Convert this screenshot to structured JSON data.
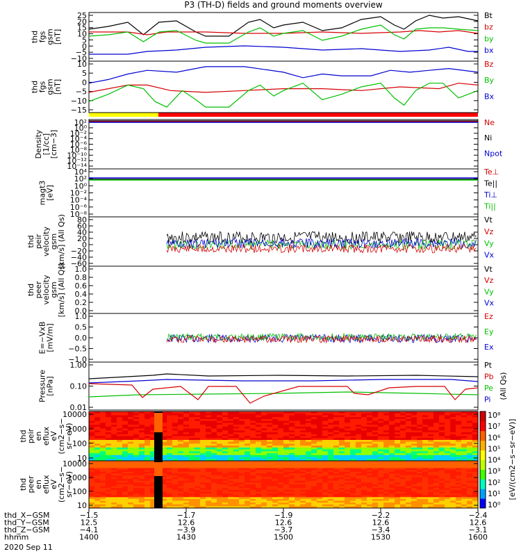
{
  "title": "P3 (TH-D) fields and ground moments overview",
  "chart_data": {
    "type": "line",
    "panels": [
      {
        "ylabel": [
          "thd",
          "fgs",
          "gsm",
          "[nT]"
        ],
        "yticks": [
          "25",
          "20",
          "15",
          "10",
          "5",
          "0",
          "−5",
          "−10"
        ],
        "ylim": [
          -10,
          25
        ],
        "legend": [
          {
            "name": "Bt",
            "color": "#000000"
          },
          {
            "name": "bz",
            "color": "#d40000"
          },
          {
            "name": "by",
            "color": "#00c000"
          },
          {
            "name": "bx",
            "color": "#0000d0"
          }
        ],
        "series": [
          {
            "name": "Bt",
            "color": "#000000",
            "points": [
              [
                0,
                13
              ],
              [
                0.1,
                15
              ],
              [
                0.2,
                18
              ],
              [
                0.28,
                9
              ],
              [
                0.36,
                18
              ],
              [
                0.45,
                19
              ],
              [
                0.55,
                11
              ],
              [
                0.6,
                8
              ],
              [
                0.72,
                8
              ],
              [
                0.82,
                18
              ],
              [
                0.88,
                20
              ],
              [
                0.95,
                14
              ],
              [
                1.0,
                16
              ],
              [
                1.1,
                18
              ],
              [
                1.2,
                12
              ],
              [
                1.3,
                14
              ],
              [
                1.4,
                20
              ],
              [
                1.5,
                22
              ],
              [
                1.57,
                16
              ],
              [
                1.62,
                13
              ],
              [
                1.68,
                19
              ],
              [
                1.75,
                23
              ],
              [
                1.82,
                21
              ],
              [
                1.9,
                22
              ],
              [
                2.0,
                19
              ]
            ]
          },
          {
            "name": "bz",
            "color": "#d40000",
            "points": [
              [
                0,
                11
              ],
              [
                0.2,
                11
              ],
              [
                0.3,
                9
              ],
              [
                0.4,
                11
              ],
              [
                0.6,
                11
              ],
              [
                0.8,
                10
              ],
              [
                1.0,
                10
              ],
              [
                1.2,
                11
              ],
              [
                1.4,
                10
              ],
              [
                1.6,
                11
              ],
              [
                1.7,
                12
              ],
              [
                1.8,
                11
              ],
              [
                1.9,
                12
              ],
              [
                2.0,
                10
              ]
            ]
          },
          {
            "name": "by",
            "color": "#00c000",
            "points": [
              [
                0,
                8
              ],
              [
                0.1,
                9
              ],
              [
                0.2,
                11
              ],
              [
                0.28,
                4
              ],
              [
                0.36,
                11
              ],
              [
                0.45,
                12
              ],
              [
                0.55,
                5
              ],
              [
                0.6,
                3
              ],
              [
                0.72,
                3
              ],
              [
                0.82,
                11
              ],
              [
                0.88,
                14
              ],
              [
                0.95,
                8
              ],
              [
                1.0,
                10
              ],
              [
                1.1,
                12
              ],
              [
                1.2,
                5
              ],
              [
                1.3,
                8
              ],
              [
                1.4,
                13
              ],
              [
                1.5,
                16
              ],
              [
                1.57,
                9
              ],
              [
                1.62,
                6
              ],
              [
                1.68,
                13
              ],
              [
                1.75,
                14
              ],
              [
                1.82,
                14
              ],
              [
                1.9,
                13
              ],
              [
                2.0,
                12
              ]
            ]
          },
          {
            "name": "bx",
            "color": "#0000d0",
            "points": [
              [
                0,
                -5
              ],
              [
                0.2,
                -5
              ],
              [
                0.3,
                -3
              ],
              [
                0.45,
                -2
              ],
              [
                0.6,
                0
              ],
              [
                0.8,
                1
              ],
              [
                1.0,
                0
              ],
              [
                1.2,
                -2
              ],
              [
                1.4,
                -1
              ],
              [
                1.6,
                -3
              ],
              [
                1.75,
                -2
              ],
              [
                1.85,
                0
              ],
              [
                1.95,
                -3
              ],
              [
                2.0,
                -3
              ]
            ]
          }
        ]
      },
      {
        "ylabel": [
          "thd",
          "fgs",
          "gsm",
          "[nT]"
        ],
        "yticks": [
          "10",
          "5",
          "0",
          "−5",
          "−10",
          "−15"
        ],
        "ylim": [
          -18,
          10
        ],
        "legend": [
          {
            "name": "Bz",
            "color": "#d40000"
          },
          {
            "name": "By",
            "color": "#00c000"
          },
          {
            "name": "Bx",
            "color": "#0000d0"
          }
        ],
        "series": [
          {
            "name": "Bz",
            "color": "#d40000",
            "points": [
              [
                0,
                -7
              ],
              [
                0.1,
                -5
              ],
              [
                0.2,
                -3
              ],
              [
                0.3,
                -3
              ],
              [
                0.42,
                -6
              ],
              [
                0.6,
                -7
              ],
              [
                0.8,
                -6
              ],
              [
                1.0,
                -5
              ],
              [
                1.2,
                -5
              ],
              [
                1.4,
                -6
              ],
              [
                1.6,
                -4
              ],
              [
                1.8,
                -5
              ],
              [
                1.9,
                -2
              ],
              [
                2.0,
                -3
              ]
            ]
          },
          {
            "name": "By",
            "color": "#00c000",
            "points": [
              [
                0,
                -12
              ],
              [
                0.1,
                -8
              ],
              [
                0.2,
                -3
              ],
              [
                0.28,
                -5
              ],
              [
                0.34,
                -12
              ],
              [
                0.4,
                -15
              ],
              [
                0.48,
                -6
              ],
              [
                0.55,
                -11
              ],
              [
                0.6,
                -15
              ],
              [
                0.72,
                -15
              ],
              [
                0.82,
                -6
              ],
              [
                0.88,
                -3
              ],
              [
                0.95,
                -9
              ],
              [
                1.0,
                -6
              ],
              [
                1.1,
                -2
              ],
              [
                1.2,
                -11
              ],
              [
                1.3,
                -8
              ],
              [
                1.4,
                -4
              ],
              [
                1.5,
                -2
              ],
              [
                1.57,
                -10
              ],
              [
                1.62,
                -14
              ],
              [
                1.68,
                -6
              ],
              [
                1.75,
                -2
              ],
              [
                1.82,
                -2
              ],
              [
                1.9,
                -10
              ],
              [
                2.0,
                -6
              ]
            ]
          },
          {
            "name": "Bx",
            "color": "#0000d0",
            "points": [
              [
                0,
                -2
              ],
              [
                0.1,
                0
              ],
              [
                0.2,
                3
              ],
              [
                0.3,
                5
              ],
              [
                0.45,
                4
              ],
              [
                0.6,
                7
              ],
              [
                0.8,
                7
              ],
              [
                1.0,
                4
              ],
              [
                1.1,
                1
              ],
              [
                1.2,
                3
              ],
              [
                1.3,
                2
              ],
              [
                1.45,
                2
              ],
              [
                1.55,
                5
              ],
              [
                1.65,
                4
              ],
              [
                1.75,
                5
              ],
              [
                1.85,
                6
              ],
              [
                2.0,
                4
              ]
            ]
          }
        ]
      },
      {
        "ylabel": [
          "Density",
          "[1/cc]",
          "[cm−3]"
        ],
        "yticks": [
          "10²",
          "10⁰",
          "10⁻²",
          "10⁻⁴",
          "10⁻⁶",
          "10⁻⁸",
          "10⁻¹⁰",
          "10⁻¹²",
          "10⁻¹⁴"
        ],
        "legend": [
          {
            "name": "Ne",
            "color": "#d40000"
          },
          {
            "name": "Ni",
            "color": "#000000"
          },
          {
            "name": "Npot",
            "color": "#0000d0"
          }
        ]
      },
      {
        "ylabel": [
          "magt3",
          "[eV]"
        ],
        "yticks": [
          "10⁴",
          "10²",
          "10⁰",
          "10⁻²",
          "10⁻⁴",
          "10⁻⁶",
          "10⁻⁸"
        ],
        "legend": [
          {
            "name": "Te⊥",
            "color": "#d40000"
          },
          {
            "name": "Te||",
            "color": "#000000"
          },
          {
            "name": "Ti⊥",
            "color": "#0000d0"
          },
          {
            "name": "Ti||",
            "color": "#00c000"
          }
        ]
      },
      {
        "ylabel": [
          "thd",
          "peir",
          "velocity",
          "gsm",
          "[km/s] (All Qs)"
        ],
        "yticks": [
          "80",
          "60",
          "40",
          "20",
          "0",
          "−20",
          "−40",
          "−60"
        ],
        "legend": [
          {
            "name": "Vt",
            "color": "#000000"
          },
          {
            "name": "Vz",
            "color": "#d40000"
          },
          {
            "name": "Vy",
            "color": "#00c000"
          },
          {
            "name": "Vx",
            "color": "#0000d0"
          }
        ]
      },
      {
        "ylabel": [
          "thd",
          "peer",
          "velocity",
          "gsm",
          "[km/s] (All Qs)"
        ],
        "yticks": [
          "1.0",
          "0.8",
          "0.6",
          "0.4",
          "0.2",
          "0.0"
        ],
        "legend": [
          {
            "name": "Vt",
            "color": "#000000"
          },
          {
            "name": "Vz",
            "color": "#d40000"
          },
          {
            "name": "Vy",
            "color": "#00c000"
          },
          {
            "name": "Vx",
            "color": "#0000d0"
          }
        ]
      },
      {
        "ylabel": [
          "E=−VxB",
          "[mV/m]"
        ],
        "yticks": [
          "1.0",
          "0.5",
          "0.0",
          "−0.5",
          "−1.0"
        ],
        "legend": [
          {
            "name": "Ez",
            "color": "#d40000"
          },
          {
            "name": "Ey",
            "color": "#00c000"
          },
          {
            "name": "Ex",
            "color": "#0000d0"
          }
        ]
      },
      {
        "ylabel": [
          "Pressure",
          "[nPa]"
        ],
        "yticks": [
          "1.00",
          "0.10",
          "0.01"
        ],
        "legend": [
          {
            "name": "Pt",
            "color": "#000000"
          },
          {
            "name": "Pb",
            "color": "#d40000"
          },
          {
            "name": "Pe",
            "color": "#00c000"
          },
          {
            "name": "Pi",
            "color": "#0000d0"
          }
        ],
        "side_note": "(All Qs)"
      },
      {
        "ylabel": [
          "thd",
          "peir",
          "en",
          "eflux",
          "eV",
          "(cm2−s−",
          "sr−eV)"
        ],
        "yticks": [
          "10000",
          "1000",
          "100",
          "10"
        ]
      },
      {
        "ylabel": [
          "thd",
          "peer",
          "en",
          "eflux",
          "eV",
          "(cm2−s−",
          "sr−eV)"
        ],
        "yticks": [
          "10000",
          "1000",
          "100",
          "10"
        ]
      }
    ],
    "colorbar": {
      "ticks": [
        "10⁸",
        "10⁷",
        "10⁶",
        "10⁵",
        "10⁴",
        "10³",
        "10²",
        "10¹",
        "10⁰"
      ],
      "label": "[eV/(cm2−s−sr−eV)]"
    },
    "footer": {
      "rows": [
        {
          "label": "thd_X−GSM",
          "values": [
            "−1.5",
            "−1.7",
            "−1.9",
            "−2.2",
            "−2.4"
          ]
        },
        {
          "label": "thd_Y−GSM",
          "values": [
            "12.5",
            "12.6",
            "12.6",
            "12.6",
            "12.6"
          ]
        },
        {
          "label": "thd_Z−GSM",
          "values": [
            "−4.1",
            "−3.9",
            "−3.7",
            "−3.4",
            "−3.1"
          ]
        },
        {
          "label": "hhmm",
          "values": [
            "1400",
            "1430",
            "1500",
            "1530",
            "1600"
          ]
        }
      ],
      "date": "2020 Sep 11"
    }
  }
}
